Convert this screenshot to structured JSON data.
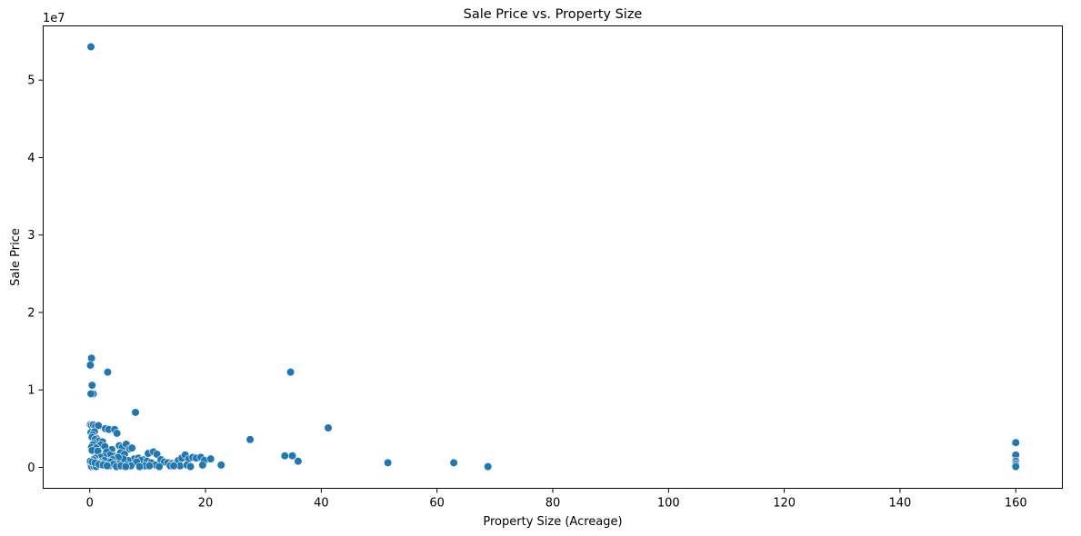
{
  "chart_data": {
    "type": "scatter",
    "title": "Sale Price vs. Property Size",
    "xlabel": "Property Size (Acreage)",
    "ylabel": "Sale Price",
    "y_offset_label": "1e7",
    "xlim": [
      -8.05,
      168.05
    ],
    "ylim": [
      -2700000,
      57000000
    ],
    "x_ticks": [
      0,
      20,
      40,
      60,
      80,
      100,
      120,
      140,
      160
    ],
    "x_tick_labels": [
      "0",
      "20",
      "40",
      "60",
      "80",
      "100",
      "120",
      "140",
      "160"
    ],
    "y_ticks": [
      0,
      10000000,
      20000000,
      30000000,
      40000000,
      50000000
    ],
    "y_tick_labels": [
      "0",
      "1",
      "2",
      "3",
      "4",
      "5"
    ],
    "grid": false,
    "marker_color": "#1f77b4",
    "series": [
      {
        "x": [
          0.2,
          0.3,
          0.1,
          0.4,
          0.6,
          0.2,
          3.1,
          7.9,
          27.7,
          34.7,
          41.2,
          33.7,
          35.0,
          36.0,
          51.5,
          62.9,
          68.8,
          160.0,
          160.0,
          160.0,
          160.0,
          160.0,
          160.0,
          0.1,
          0.3,
          0.6,
          1.0,
          1.5,
          0.2,
          0.8,
          0.5,
          2.7,
          3.3,
          0.4,
          1.2,
          0.9,
          4.3,
          1.6,
          2.2,
          0.7,
          0.5,
          1.9,
          0.3,
          2.6,
          1.1,
          3.8,
          4.7,
          0.4,
          1.4,
          2.9,
          5.1,
          5.6,
          6.3,
          6.9,
          5.3,
          6.0,
          4.0,
          3.5,
          2.4,
          1.8,
          0.9,
          7.3,
          7.7,
          8.4,
          9.2,
          8.8,
          10.1,
          11.0,
          11.6,
          12.3,
          12.9,
          13.5,
          14.2,
          14.8,
          15.3,
          15.9,
          16.5,
          17.1,
          17.8,
          18.4,
          19.2,
          19.8,
          20.9,
          22.7,
          9.9,
          10.6,
          8.1,
          6.6,
          5.8,
          4.9,
          3.9,
          3.2,
          2.5,
          1.7,
          0.6,
          1.3,
          2.1,
          3.6,
          4.4,
          5.0,
          0.2,
          0.8,
          1.0,
          2.0,
          0.5,
          1.5,
          2.8,
          3.4,
          4.1,
          0.3,
          0.7,
          1.1,
          6.4,
          7.1,
          9.5,
          11.4,
          13.9,
          15.6,
          16.8,
          0.1,
          0.4,
          0.9,
          1.6,
          2.3,
          3.0,
          4.6,
          5.4,
          6.2,
          8.6,
          10.3,
          12.0,
          14.5,
          17.4,
          19.5
        ],
        "y": [
          54300000,
          14100000,
          13200000,
          10600000,
          9500000,
          9500000,
          12300000,
          7100000,
          3600000,
          12300000,
          5100000,
          1500000,
          1500000,
          800000,
          600000,
          600000,
          100000,
          3200000,
          1600000,
          800000,
          500000,
          300000,
          100000,
          5500000,
          5400000,
          5500000,
          5300000,
          5400000,
          4500000,
          4600000,
          4200000,
          5000000,
          4900000,
          3900000,
          3700000,
          3600000,
          4900000,
          3400000,
          3300000,
          3100000,
          2900000,
          2900000,
          2600000,
          2700000,
          2500000,
          2300000,
          4400000,
          2200000,
          2100000,
          2000000,
          2800000,
          2600000,
          3000000,
          2400000,
          1900000,
          1700000,
          1500000,
          1600000,
          1400000,
          1300000,
          1200000,
          2500000,
          1100000,
          1200000,
          1000000,
          900000,
          1800000,
          2000000,
          1700000,
          1000000,
          700000,
          600000,
          500000,
          400000,
          900000,
          1200000,
          1600000,
          1100000,
          1300000,
          1200000,
          1300000,
          900000,
          1100000,
          300000,
          800000,
          600000,
          700000,
          900000,
          1100000,
          1300000,
          1000000,
          800000,
          900000,
          700000,
          1000000,
          600000,
          500000,
          700000,
          500000,
          400000,
          300000,
          200000,
          400000,
          300000,
          200000,
          500000,
          300000,
          200000,
          400000,
          100000,
          150000,
          100000,
          300000,
          200000,
          200000,
          300000,
          200000,
          200000,
          300000,
          800000,
          700000,
          600000,
          400000,
          300000,
          200000,
          100000,
          200000,
          100000,
          100000,
          200000,
          100000,
          200000,
          100000,
          300000
        ]
      }
    ]
  }
}
